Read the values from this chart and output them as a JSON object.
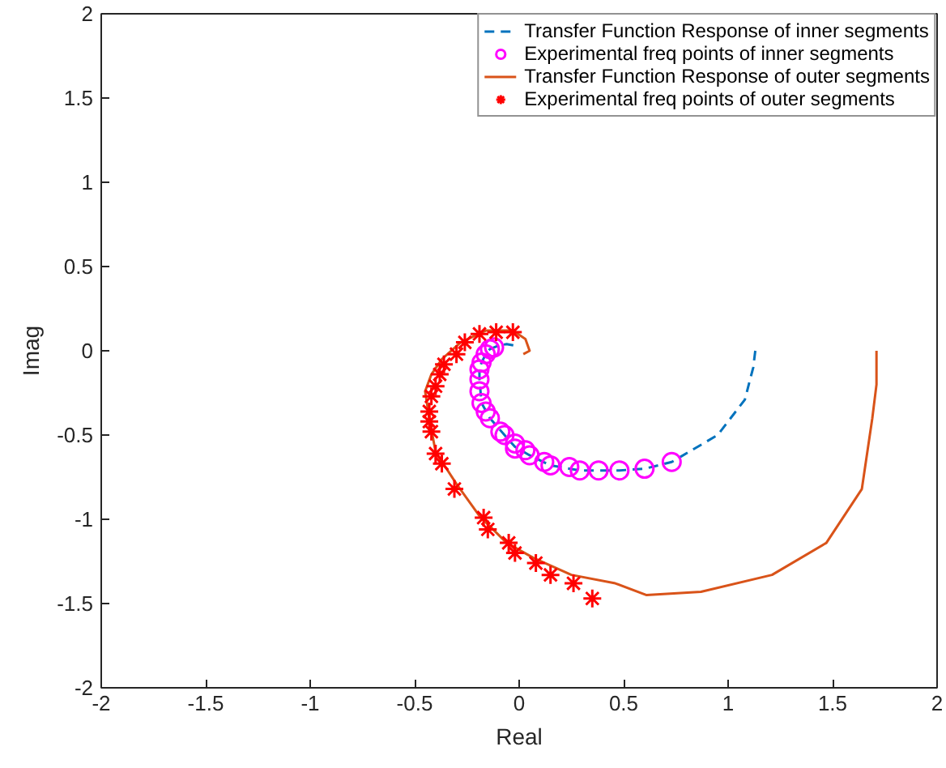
{
  "chart_data": {
    "type": "line",
    "xlabel": "Real",
    "ylabel": "Imag",
    "xlim": [
      -2,
      2
    ],
    "ylim": [
      -2,
      2
    ],
    "xticks": [
      -2,
      -1.5,
      -1,
      -0.5,
      0,
      0.5,
      1,
      1.5,
      2
    ],
    "yticks": [
      -2,
      -1.5,
      -1,
      -0.5,
      0,
      0.5,
      1,
      1.5,
      2
    ],
    "grid": false,
    "legend": "top right",
    "series": [
      {
        "name": "Transfer Function Response of inner segments",
        "line_style": "dashed",
        "color": "#0072bd",
        "x": [
          1.13,
          1.12,
          1.08,
          0.95,
          0.73,
          0.6,
          0.48,
          0.38,
          0.29,
          0.15,
          0.05,
          -0.02,
          -0.07,
          -0.14,
          -0.18,
          -0.19,
          -0.19,
          -0.18,
          -0.16,
          -0.14,
          -0.1,
          -0.06,
          -0.02
        ],
        "values": [
          0,
          -0.1,
          -0.29,
          -0.5,
          -0.66,
          -0.7,
          -0.71,
          -0.71,
          -0.71,
          -0.68,
          -0.62,
          -0.57,
          -0.5,
          -0.4,
          -0.31,
          -0.17,
          -0.11,
          -0.07,
          -0.02,
          0.01,
          0.03,
          0.04,
          0.03
        ]
      },
      {
        "name": "Experimental freq points of inner segments",
        "type": "scatter",
        "marker": "circle",
        "color": "#ff00ff",
        "x": [
          0.73,
          0.6,
          0.48,
          0.38,
          0.29,
          0.24,
          0.15,
          0.12,
          0.05,
          0.03,
          -0.02,
          -0.02,
          -0.07,
          -0.09,
          -0.14,
          -0.16,
          -0.18,
          -0.19,
          -0.19,
          -0.19,
          -0.18,
          -0.16,
          -0.14,
          -0.12
        ],
        "values": [
          -0.66,
          -0.7,
          -0.71,
          -0.71,
          -0.71,
          -0.69,
          -0.68,
          -0.66,
          -0.62,
          -0.59,
          -0.58,
          -0.55,
          -0.5,
          -0.48,
          -0.4,
          -0.36,
          -0.31,
          -0.24,
          -0.17,
          -0.11,
          -0.07,
          -0.02,
          0.01,
          0.02
        ]
      },
      {
        "name": "Transfer Function Response of outer segments",
        "line_style": "solid",
        "color": "#d95319",
        "x": [
          1.71,
          1.71,
          1.69,
          1.64,
          1.47,
          1.21,
          0.87,
          0.61,
          0.46,
          0.25,
          0.07,
          -0.06,
          -0.19,
          -0.3,
          -0.4,
          -0.43,
          -0.45,
          -0.42,
          -0.37,
          -0.28,
          -0.16,
          -0.03,
          0.03,
          0.05,
          0.02
        ],
        "values": [
          0,
          -0.2,
          -0.4,
          -0.82,
          -1.14,
          -1.33,
          -1.43,
          -1.45,
          -1.38,
          -1.33,
          -1.23,
          -1.14,
          -0.98,
          -0.79,
          -0.6,
          -0.4,
          -0.24,
          -0.14,
          -0.05,
          0.05,
          0.12,
          0.12,
          0.07,
          0.0,
          -0.02
        ]
      },
      {
        "name": "Experimental freq points of outer segments",
        "type": "scatter",
        "marker": "cross",
        "color": "#ff0000",
        "x": [
          -0.03,
          -0.11,
          -0.19,
          -0.26,
          -0.3,
          -0.36,
          -0.38,
          -0.4,
          -0.42,
          -0.43,
          -0.43,
          -0.42,
          -0.4,
          -0.37,
          -0.31,
          -0.17,
          -0.15,
          -0.05,
          -0.02,
          0.08,
          0.15,
          0.26,
          0.35
        ],
        "values": [
          0.11,
          0.11,
          0.1,
          0.05,
          -0.02,
          -0.08,
          -0.14,
          -0.21,
          -0.27,
          -0.36,
          -0.42,
          -0.48,
          -0.61,
          -0.67,
          -0.82,
          -0.99,
          -1.06,
          -1.14,
          -1.2,
          -1.26,
          -1.33,
          -1.38,
          -1.47
        ]
      }
    ]
  }
}
